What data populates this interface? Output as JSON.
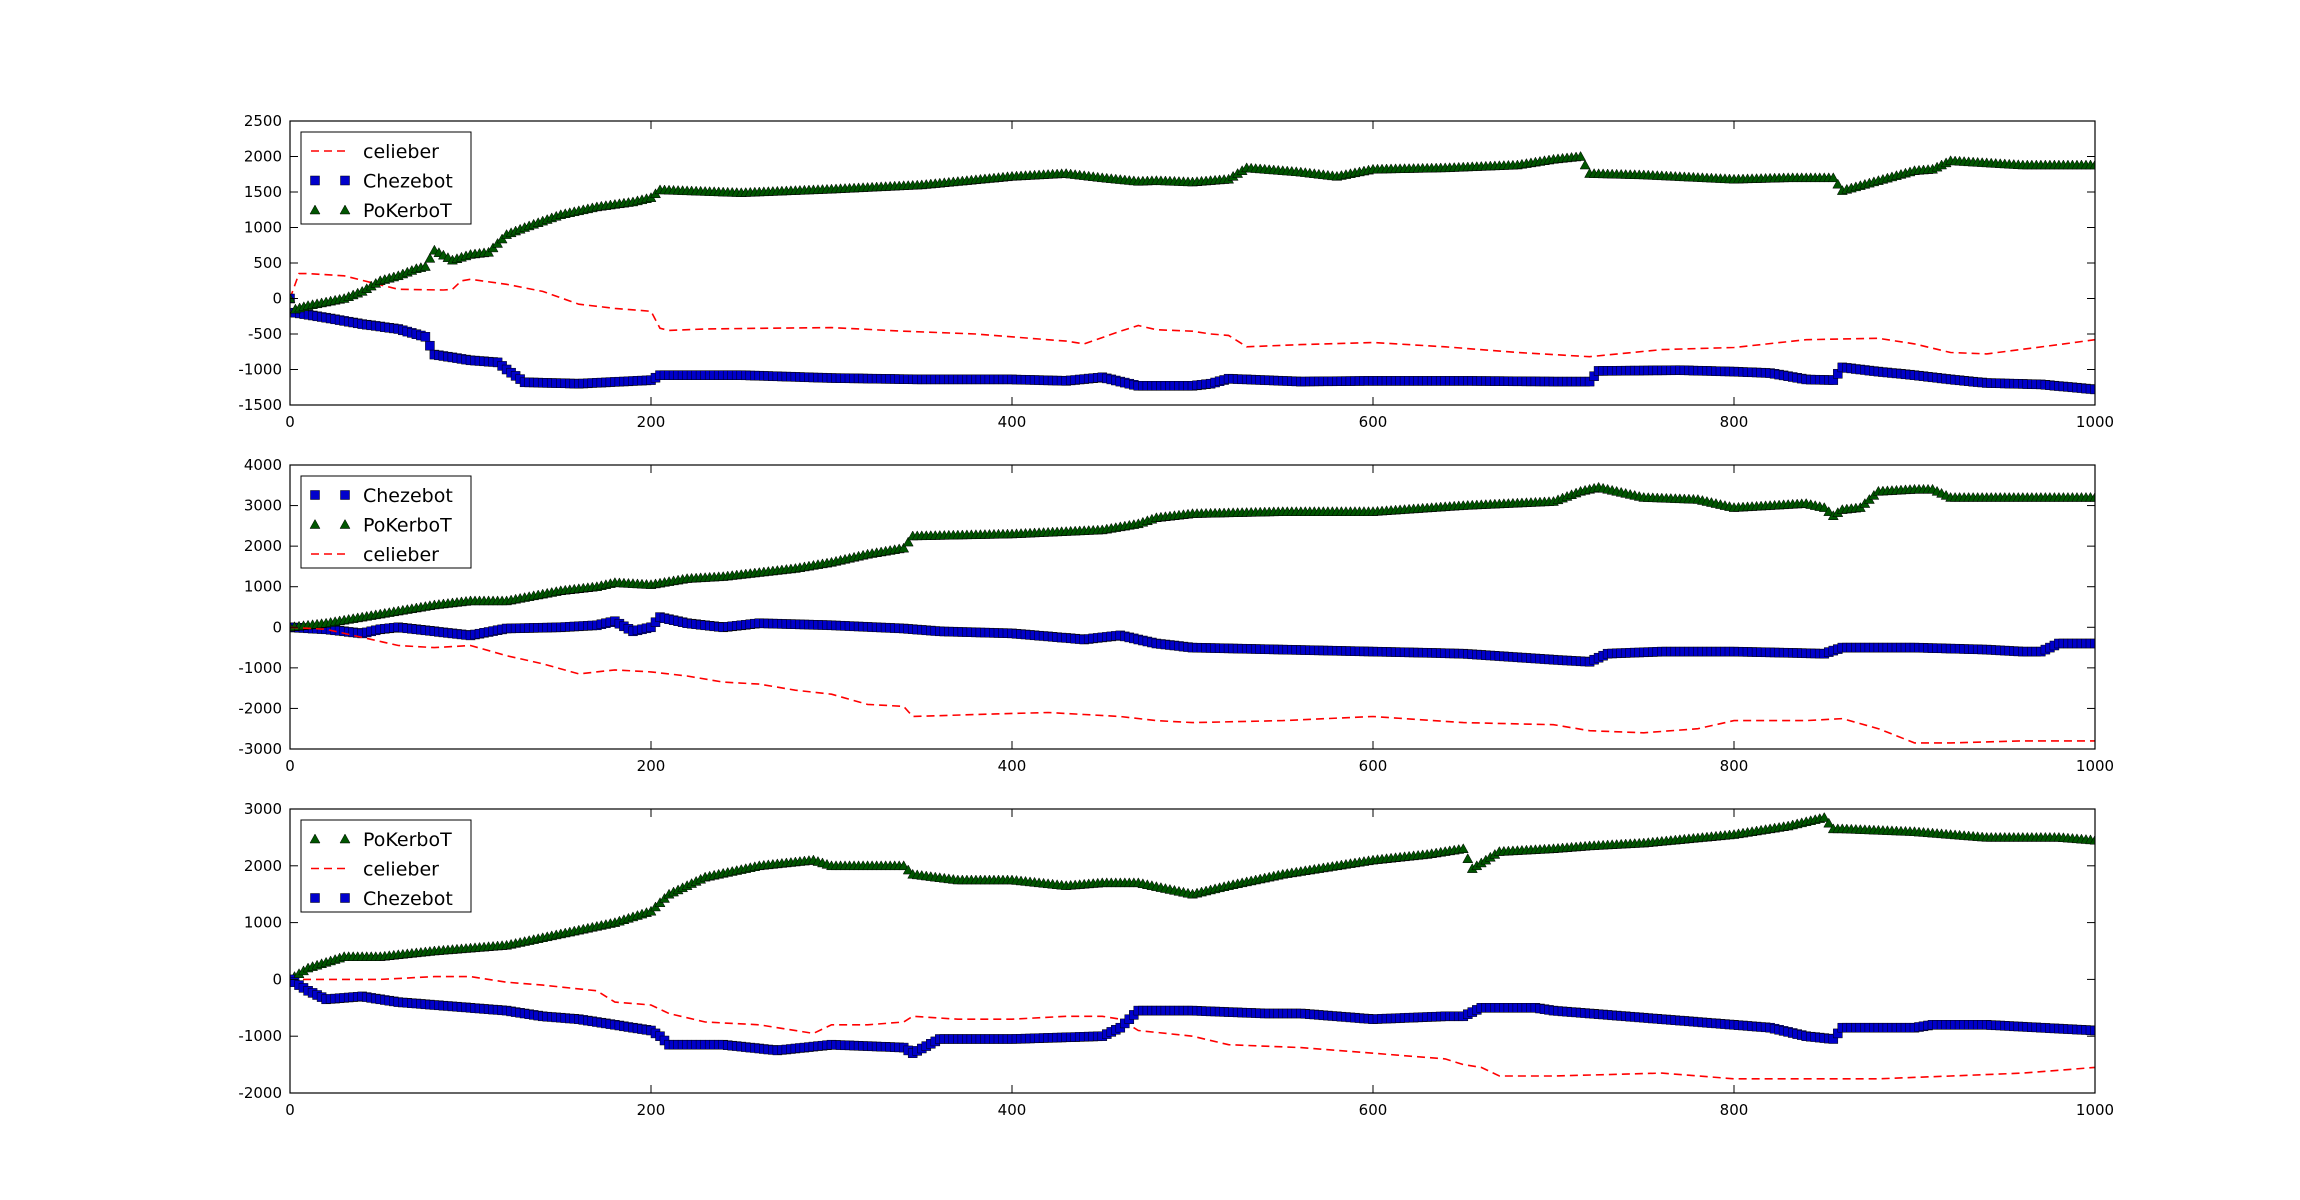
{
  "chart_data": [
    {
      "type": "line",
      "xlim": [
        0,
        1000
      ],
      "ylim": [
        -1500,
        2500
      ],
      "x_ticks": [
        "0",
        "200",
        "400",
        "600",
        "800",
        "1000"
      ],
      "y_ticks": [
        "-1500",
        "-1000",
        "-500",
        "0",
        "500",
        "1000",
        "1500",
        "2000",
        "2500"
      ],
      "grid": false,
      "legend_position": "top-left",
      "series": [
        {
          "name": "celieber",
          "style": "dashed-line",
          "color": "#ff0000",
          "x": [
            0,
            5,
            10,
            30,
            60,
            85,
            90,
            95,
            100,
            120,
            140,
            160,
            180,
            200,
            205,
            210,
            230,
            260,
            300,
            340,
            380,
            410,
            430,
            440,
            460,
            470,
            480,
            500,
            510,
            520,
            530,
            560,
            600,
            640,
            680,
            720,
            760,
            800,
            840,
            880,
            900,
            920,
            940,
            980,
            1000
          ],
          "y": [
            0,
            350,
            350,
            320,
            130,
            120,
            130,
            250,
            270,
            200,
            100,
            -80,
            -140,
            -180,
            -420,
            -450,
            -430,
            -420,
            -410,
            -460,
            -500,
            -560,
            -600,
            -640,
            -460,
            -380,
            -440,
            -460,
            -500,
            -520,
            -680,
            -650,
            -620,
            -680,
            -760,
            -820,
            -720,
            -690,
            -580,
            -560,
            -640,
            -760,
            -780,
            -650,
            -580
          ]
        },
        {
          "name": "Chezebot",
          "style": "square-markers",
          "color": "#0000cc",
          "x": [
            0,
            3,
            20,
            40,
            60,
            75,
            80,
            100,
            115,
            120,
            130,
            160,
            200,
            205,
            250,
            300,
            350,
            400,
            430,
            450,
            470,
            500,
            510,
            520,
            560,
            600,
            650,
            700,
            720,
            725,
            770,
            800,
            820,
            840,
            855,
            860,
            880,
            900,
            920,
            940,
            970,
            1000
          ],
          "y": [
            0,
            -200,
            -270,
            -360,
            -430,
            -540,
            -790,
            -870,
            -900,
            -1000,
            -1180,
            -1200,
            -1150,
            -1080,
            -1080,
            -1120,
            -1140,
            -1140,
            -1160,
            -1110,
            -1230,
            -1230,
            -1200,
            -1130,
            -1170,
            -1160,
            -1160,
            -1170,
            -1170,
            -1020,
            -1010,
            -1030,
            -1050,
            -1140,
            -1150,
            -970,
            -1030,
            -1080,
            -1140,
            -1190,
            -1210,
            -1280
          ]
        },
        {
          "name": "PoKerboT",
          "style": "triangle-markers",
          "color": "#005500",
          "x": [
            0,
            3,
            10,
            20,
            30,
            40,
            50,
            60,
            70,
            75,
            80,
            90,
            100,
            110,
            120,
            130,
            150,
            170,
            190,
            200,
            205,
            250,
            300,
            350,
            400,
            430,
            450,
            470,
            480,
            500,
            520,
            530,
            560,
            580,
            600,
            640,
            680,
            700,
            715,
            720,
            750,
            800,
            830,
            855,
            860,
            900,
            910,
            920,
            960,
            1000
          ],
          "y": [
            0,
            -150,
            -100,
            -50,
            0,
            100,
            250,
            320,
            420,
            450,
            680,
            540,
            620,
            650,
            900,
            1000,
            1180,
            1290,
            1360,
            1420,
            1530,
            1490,
            1540,
            1600,
            1720,
            1760,
            1700,
            1650,
            1660,
            1640,
            1680,
            1840,
            1780,
            1720,
            1820,
            1840,
            1880,
            1960,
            2000,
            1760,
            1740,
            1680,
            1700,
            1700,
            1520,
            1800,
            1820,
            1940,
            1880,
            1880
          ]
        }
      ]
    },
    {
      "type": "line",
      "xlim": [
        0,
        1000
      ],
      "ylim": [
        -3000,
        4000
      ],
      "x_ticks": [
        "0",
        "200",
        "400",
        "600",
        "800",
        "1000"
      ],
      "y_ticks": [
        "-3000",
        "-2000",
        "-1000",
        "0",
        "1000",
        "2000",
        "3000",
        "4000"
      ],
      "grid": false,
      "legend_position": "top-left",
      "series": [
        {
          "name": "Chezebot",
          "style": "square-markers",
          "color": "#0000cc",
          "x": [
            0,
            20,
            40,
            50,
            60,
            80,
            100,
            120,
            150,
            170,
            180,
            190,
            200,
            205,
            220,
            240,
            260,
            300,
            340,
            360,
            400,
            440,
            460,
            480,
            500,
            550,
            600,
            650,
            700,
            720,
            730,
            760,
            800,
            850,
            860,
            900,
            940,
            960,
            970,
            980,
            1000
          ],
          "y": [
            0,
            -50,
            -150,
            -50,
            0,
            -100,
            -200,
            -30,
            0,
            50,
            150,
            -100,
            0,
            250,
            100,
            0,
            100,
            50,
            -30,
            -100,
            -150,
            -300,
            -200,
            -400,
            -500,
            -550,
            -600,
            -650,
            -800,
            -850,
            -650,
            -600,
            -600,
            -650,
            -500,
            -500,
            -550,
            -600,
            -600,
            -400,
            -400
          ]
        },
        {
          "name": "PoKerboT",
          "style": "triangle-markers",
          "color": "#005500",
          "x": [
            0,
            20,
            40,
            60,
            80,
            100,
            120,
            150,
            170,
            180,
            200,
            220,
            240,
            260,
            280,
            300,
            320,
            340,
            345,
            400,
            450,
            470,
            480,
            500,
            550,
            600,
            650,
            700,
            715,
            725,
            750,
            780,
            800,
            820,
            840,
            850,
            855,
            860,
            870,
            880,
            900,
            910,
            920,
            960,
            1000
          ],
          "y": [
            0,
            100,
            250,
            400,
            550,
            650,
            650,
            900,
            1000,
            1100,
            1050,
            1200,
            1250,
            1350,
            1450,
            1600,
            1800,
            1950,
            2250,
            2300,
            2400,
            2550,
            2700,
            2800,
            2850,
            2850,
            3000,
            3100,
            3350,
            3450,
            3200,
            3150,
            2950,
            3000,
            3050,
            2950,
            2750,
            2900,
            2950,
            3350,
            3400,
            3400,
            3200,
            3200,
            3200
          ]
        },
        {
          "name": "celieber",
          "style": "dashed-line",
          "color": "#ff0000",
          "x": [
            0,
            20,
            40,
            60,
            80,
            100,
            120,
            140,
            160,
            180,
            200,
            220,
            240,
            260,
            280,
            300,
            320,
            340,
            345,
            380,
            420,
            440,
            460,
            480,
            500,
            550,
            600,
            650,
            700,
            720,
            750,
            780,
            800,
            840,
            860,
            880,
            900,
            920,
            960,
            1000
          ],
          "y": [
            0,
            -50,
            -250,
            -450,
            -500,
            -450,
            -700,
            -900,
            -1150,
            -1050,
            -1100,
            -1200,
            -1350,
            -1400,
            -1550,
            -1650,
            -1900,
            -1950,
            -2200,
            -2150,
            -2100,
            -2150,
            -2200,
            -2300,
            -2350,
            -2300,
            -2200,
            -2350,
            -2400,
            -2550,
            -2600,
            -2500,
            -2300,
            -2300,
            -2250,
            -2500,
            -2850,
            -2850,
            -2800,
            -2800
          ]
        }
      ]
    },
    {
      "type": "line",
      "xlim": [
        0,
        1000
      ],
      "ylim": [
        -2000,
        3000
      ],
      "x_ticks": [
        "0",
        "200",
        "400",
        "600",
        "800",
        "1000"
      ],
      "y_ticks": [
        "-2000",
        "-1000",
        "0",
        "1000",
        "2000",
        "3000"
      ],
      "grid": false,
      "legend_position": "top-left",
      "series": [
        {
          "name": "PoKerboT",
          "style": "triangle-markers",
          "color": "#005500",
          "x": [
            0,
            10,
            20,
            30,
            50,
            80,
            100,
            120,
            150,
            180,
            200,
            210,
            230,
            260,
            290,
            300,
            340,
            345,
            370,
            400,
            430,
            450,
            460,
            470,
            500,
            520,
            550,
            600,
            630,
            650,
            655,
            670,
            700,
            720,
            750,
            800,
            830,
            850,
            855,
            860,
            900,
            940,
            980,
            1000
          ],
          "y": [
            0,
            200,
            300,
            400,
            400,
            500,
            550,
            600,
            800,
            1000,
            1200,
            1500,
            1800,
            2000,
            2100,
            2000,
            2000,
            1850,
            1750,
            1750,
            1650,
            1700,
            1700,
            1700,
            1500,
            1650,
            1850,
            2100,
            2200,
            2300,
            1950,
            2250,
            2300,
            2350,
            2400,
            2550,
            2700,
            2850,
            2650,
            2650,
            2600,
            2500,
            2500,
            2450
          ]
        },
        {
          "name": "celieber",
          "style": "dashed-line",
          "color": "#ff0000",
          "x": [
            0,
            20,
            50,
            80,
            100,
            120,
            140,
            170,
            180,
            200,
            210,
            230,
            260,
            270,
            290,
            300,
            320,
            340,
            345,
            370,
            400,
            430,
            450,
            460,
            470,
            500,
            520,
            560,
            600,
            640,
            650,
            660,
            670,
            680,
            700,
            760,
            800,
            840,
            880,
            920,
            960,
            1000
          ],
          "y": [
            0,
            0,
            0,
            50,
            50,
            -50,
            -100,
            -200,
            -400,
            -450,
            -600,
            -750,
            -800,
            -850,
            -950,
            -800,
            -800,
            -750,
            -650,
            -700,
            -700,
            -650,
            -650,
            -700,
            -900,
            -1000,
            -1150,
            -1200,
            -1300,
            -1400,
            -1500,
            -1550,
            -1700,
            -1700,
            -1700,
            -1650,
            -1750,
            -1750,
            -1750,
            -1700,
            -1650,
            -1550
          ]
        },
        {
          "name": "Chezebot",
          "style": "square-markers",
          "color": "#0000cc",
          "x": [
            0,
            10,
            20,
            40,
            60,
            80,
            100,
            120,
            140,
            160,
            180,
            200,
            205,
            210,
            240,
            270,
            300,
            340,
            345,
            360,
            400,
            450,
            460,
            470,
            500,
            540,
            560,
            600,
            640,
            650,
            660,
            690,
            700,
            720,
            760,
            800,
            820,
            840,
            855,
            860,
            880,
            900,
            910,
            940,
            1000
          ],
          "y": [
            0,
            -200,
            -350,
            -300,
            -400,
            -450,
            -500,
            -550,
            -650,
            -700,
            -800,
            -900,
            -1000,
            -1150,
            -1150,
            -1250,
            -1150,
            -1200,
            -1300,
            -1050,
            -1050,
            -1000,
            -850,
            -550,
            -550,
            -600,
            -600,
            -700,
            -650,
            -650,
            -500,
            -500,
            -550,
            -600,
            -700,
            -800,
            -850,
            -1000,
            -1050,
            -850,
            -850,
            -850,
            -800,
            -800,
            -900
          ]
        }
      ]
    }
  ]
}
